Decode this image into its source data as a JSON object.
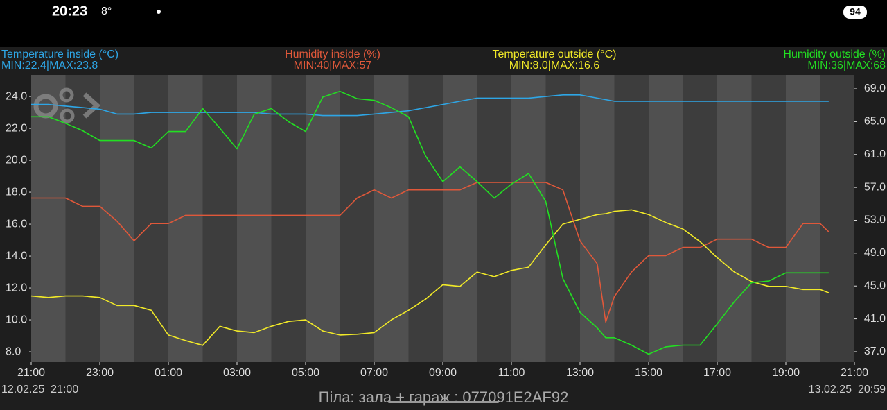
{
  "status_bar": {
    "time": "20:23",
    "temperature": "8°",
    "battery": "94"
  },
  "chart_data": {
    "type": "line",
    "x": [
      0,
      0.5,
      1,
      1.5,
      2,
      2.5,
      3,
      3.5,
      4,
      4.5,
      5,
      5.5,
      6,
      6.5,
      7,
      7.5,
      8,
      8.5,
      9,
      9.5,
      10,
      10.5,
      11,
      11.5,
      12,
      12.5,
      13,
      13.5,
      14,
      14.5,
      15,
      15.5,
      16,
      16.5,
      16.75,
      17,
      17.5,
      18,
      18.5,
      19,
      19.5,
      20,
      20.5,
      21,
      21.5,
      22,
      22.5,
      23,
      23.25
    ],
    "xlim": [
      0,
      24
    ],
    "xticks": [
      {
        "value": 0,
        "label": "21:00"
      },
      {
        "value": 2,
        "label": "23:00"
      },
      {
        "value": 4,
        "label": "01:00"
      },
      {
        "value": 6,
        "label": "03:00"
      },
      {
        "value": 8,
        "label": "05:00"
      },
      {
        "value": 10,
        "label": "07:00"
      },
      {
        "value": 12,
        "label": "09:00"
      },
      {
        "value": 14,
        "label": "11:00"
      },
      {
        "value": 16,
        "label": "13:00"
      },
      {
        "value": 18,
        "label": "15:00"
      },
      {
        "value": 20,
        "label": "17:00"
      },
      {
        "value": 22,
        "label": "19:00"
      },
      {
        "value": 24,
        "label": "21:00"
      }
    ],
    "ylim": [
      7.35,
      25.35
    ],
    "yticks": [
      {
        "value": 8,
        "label": "8.0"
      },
      {
        "value": 10,
        "label": "10.0"
      },
      {
        "value": 12,
        "label": "12.0"
      },
      {
        "value": 14,
        "label": "14.0"
      },
      {
        "value": 16,
        "label": "16.0"
      },
      {
        "value": 18,
        "label": "18.0"
      },
      {
        "value": 20,
        "label": "20.0"
      },
      {
        "value": 22,
        "label": "22.0"
      },
      {
        "value": 24,
        "label": "24.0"
      }
    ],
    "y2lim": [
      35.73,
      70.69
    ],
    "y2ticks": [
      {
        "value": 37,
        "label": "37.0"
      },
      {
        "value": 41,
        "label": "41.0"
      },
      {
        "value": 45,
        "label": "45.0"
      },
      {
        "value": 49,
        "label": "49.0"
      },
      {
        "value": 53,
        "label": "53.0"
      },
      {
        "value": 57,
        "label": "57.0"
      },
      {
        "value": 61,
        "label": "61.0"
      },
      {
        "value": 65,
        "label": "65.0"
      },
      {
        "value": 69,
        "label": "69.0"
      }
    ],
    "start_label": "12.02.25  21:00",
    "end_label": "13.02.25  20:59",
    "series": [
      {
        "name": "Temperature inside (°C)",
        "summary": "MIN:22.4|MAX:23.8",
        "color": "#2ea6e6",
        "axis": "y",
        "values": [
          23.5,
          23.5,
          23.4,
          23.3,
          23.2,
          22.9,
          22.9,
          23.0,
          23.0,
          23.0,
          23.0,
          23.0,
          23.0,
          23.0,
          22.9,
          22.9,
          22.9,
          22.8,
          22.8,
          22.8,
          22.9,
          23.0,
          23.1,
          23.3,
          23.5,
          23.7,
          23.9,
          23.9,
          23.9,
          23.9,
          24.0,
          24.1,
          24.1,
          23.9,
          23.8,
          23.7,
          23.7,
          23.7,
          23.7,
          23.7,
          23.7,
          23.7,
          23.7,
          23.7,
          23.7,
          23.7,
          23.7,
          23.7,
          23.7
        ]
      },
      {
        "name": "Humidity inside (%)",
        "summary": "MIN:40|MAX:57",
        "color": "#e0583a",
        "axis": "y2",
        "values": [
          55.7,
          55.7,
          55.7,
          54.7,
          54.7,
          52.9,
          50.5,
          52.6,
          52.6,
          53.6,
          53.6,
          53.6,
          53.6,
          53.6,
          53.6,
          53.6,
          53.6,
          53.6,
          53.6,
          55.7,
          56.7,
          55.7,
          56.7,
          56.7,
          56.7,
          56.7,
          57.6,
          57.6,
          57.6,
          57.6,
          57.6,
          56.7,
          50.5,
          47.7,
          40.6,
          43.7,
          46.7,
          48.7,
          48.7,
          49.7,
          49.7,
          50.7,
          50.7,
          50.7,
          49.7,
          49.7,
          52.6,
          52.6,
          51.6
        ]
      },
      {
        "name": "Temperature outside (°C)",
        "summary": "MIN:8.0|MAX:16.6",
        "color": "#f2ea28",
        "axis": "y",
        "values": [
          11.5,
          11.4,
          11.5,
          11.5,
          11.4,
          10.9,
          10.9,
          10.6,
          9.05,
          8.7,
          8.4,
          9.6,
          9.3,
          9.2,
          9.6,
          9.9,
          10.0,
          9.3,
          9.05,
          9.1,
          9.2,
          10.0,
          10.6,
          11.3,
          12.2,
          12.1,
          13.0,
          12.7,
          13.1,
          13.3,
          14.7,
          16.0,
          16.3,
          16.6,
          16.65,
          16.8,
          16.9,
          16.6,
          16.1,
          15.7,
          14.9,
          13.9,
          13.0,
          12.4,
          12.1,
          12.1,
          11.9,
          11.9,
          11.7
        ]
      },
      {
        "name": "Humidity outside (%)",
        "summary": "MIN:36|MAX:68",
        "color": "#22e022",
        "axis": "y2",
        "values": [
          65.6,
          65.6,
          64.8,
          63.9,
          62.7,
          62.7,
          62.7,
          61.8,
          63.8,
          63.8,
          66.6,
          64.2,
          61.7,
          65.9,
          66.6,
          65.0,
          63.8,
          68.0,
          68.7,
          67.8,
          67.6,
          66.7,
          65.6,
          60.8,
          57.7,
          59.5,
          57.7,
          55.7,
          57.4,
          58.7,
          55.3,
          45.9,
          41.8,
          39.9,
          38.7,
          38.7,
          37.8,
          36.7,
          37.6,
          37.8,
          37.8,
          40.4,
          43.1,
          45.4,
          45.6,
          46.6,
          46.6,
          46.6,
          46.6
        ]
      }
    ]
  },
  "footer": "Піла: зала + гараж : 077091E2AF92"
}
